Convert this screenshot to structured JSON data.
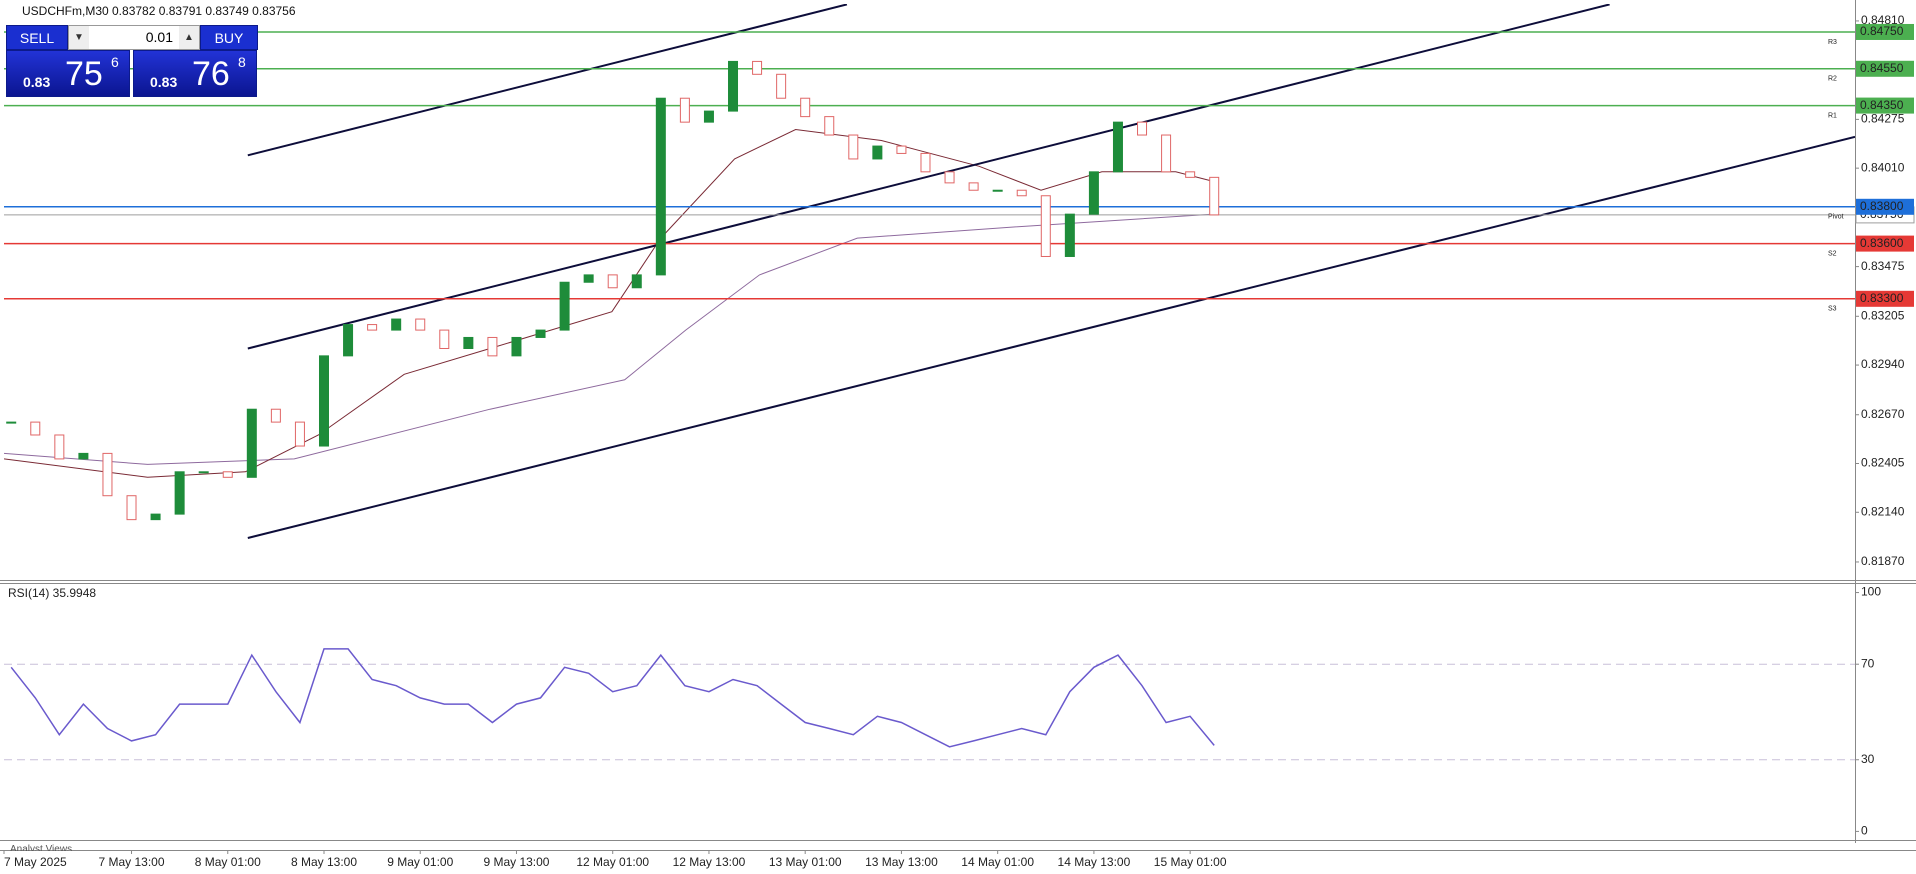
{
  "header": {
    "symbol_info": "USDCHFm,M30  0.83782 0.83791 0.83749 0.83756"
  },
  "trade_panel": {
    "sell": {
      "label": "SELL",
      "price_prefix": "0.83",
      "price_big": "75",
      "price_sup": "6"
    },
    "volume": "0.01",
    "buy": {
      "label": "BUY",
      "price_prefix": "0.83",
      "price_big": "76",
      "price_sup": "8"
    }
  },
  "footer_tab": "Analyst Views",
  "chart_data": [
    {
      "type": "candlestick",
      "up_color": "#1e8c3a",
      "down_color": "#e06666",
      "x": [
        -3,
        0,
        3,
        6,
        9,
        12,
        15,
        18,
        21,
        24,
        27,
        30,
        33,
        36,
        39,
        42,
        45,
        48,
        51,
        54,
        57,
        60,
        63,
        66,
        69,
        72,
        75,
        78,
        81,
        84,
        87,
        90,
        93,
        96,
        99,
        102,
        105,
        108,
        111,
        114,
        117,
        120,
        123,
        126,
        129,
        132,
        135,
        138,
        141,
        144,
        147
      ],
      "values": [
        0.8263,
        0.8256,
        0.8243,
        0.8246,
        0.8223,
        0.821,
        0.8213,
        0.8236,
        0.8236,
        0.8233,
        0.827,
        0.8263,
        0.825,
        0.8299,
        0.8316,
        0.8313,
        0.8319,
        0.8313,
        0.8303,
        0.8309,
        0.8299,
        0.8309,
        0.8313,
        0.8339,
        0.8343,
        0.8336,
        0.8343,
        0.8439,
        0.8426,
        0.8432,
        0.8459,
        0.8452,
        0.8439,
        0.8429,
        0.8419,
        0.8406,
        0.8413,
        0.8409,
        0.8399,
        0.8393,
        0.8389,
        0.8389,
        0.8386,
        0.8353,
        0.8376,
        0.8399,
        0.8426,
        0.8419,
        0.8399,
        0.8396,
        0.83756
      ],
      "xlim": [
        -3.9,
        226.9
      ],
      "ylim": [
        0.81772,
        0.84902
      ],
      "yticks": [
        {
          "value": 0.8481,
          "label": "0.84810"
        },
        {
          "value": 0.84275,
          "label": "0.84275"
        },
        {
          "value": 0.8401,
          "label": "0.84010"
        },
        {
          "value": 0.83475,
          "label": "0.83475"
        },
        {
          "value": 0.83205,
          "label": "0.83205"
        },
        {
          "value": 0.8294,
          "label": "0.82940"
        },
        {
          "value": 0.8267,
          "label": "0.82670"
        },
        {
          "value": 0.82405,
          "label": "0.82405"
        },
        {
          "value": 0.8214,
          "label": "0.82140"
        },
        {
          "value": 0.8187,
          "label": "0.81870"
        }
      ],
      "bid": {
        "value": 0.83756,
        "label": "0.83756",
        "color": "#9e9e9e"
      },
      "levels": [
        {
          "value": 0.8475,
          "label": "0.84750",
          "tag": "R3",
          "color": "#4caf50"
        },
        {
          "value": 0.8455,
          "label": "0.84550",
          "tag": "R2",
          "color": "#4caf50"
        },
        {
          "value": 0.8435,
          "label": "0.84350",
          "tag": "R1",
          "color": "#4caf50"
        },
        {
          "value": 0.838,
          "label": "0.83800",
          "tag": "Pivot",
          "color": "#1e6fd9"
        },
        {
          "value": 0.836,
          "label": "0.83600",
          "tag": "S2",
          "color": "#e53935"
        },
        {
          "value": 0.833,
          "label": "0.83300",
          "tag": "S3",
          "color": "#e53935"
        }
      ],
      "overlays": [
        {
          "color": "#8e6a9e",
          "x": [
            -3.9,
            14,
            32.3,
            56.7,
            73.5,
            81.1,
            90.3,
            102.5,
            122,
            146.7
          ],
          "values": [
            0.8246,
            0.824,
            0.8243,
            0.827,
            0.8286,
            0.8313,
            0.8343,
            0.8363,
            0.8369,
            0.8376
          ]
        },
        {
          "color": "#7a2a35",
          "x": [
            -3.9,
            14,
            26.2,
            35.3,
            46,
            56.7,
            71.9,
            78,
            87.2,
            94.8,
            105.5,
            117.7,
            125.4,
            133,
            142.2,
            146.7
          ],
          "values": [
            0.8243,
            0.8233,
            0.8236,
            0.8256,
            0.8289,
            0.8303,
            0.8323,
            0.8363,
            0.8406,
            0.8422,
            0.8416,
            0.8402,
            0.8389,
            0.8399,
            0.8399,
            0.8394
          ]
        }
      ],
      "trendlines": [
        {
          "color": "#0d0d3a",
          "x": [
            26.5,
            101.2
          ],
          "values": [
            0.8408,
            0.849
          ]
        },
        {
          "color": "#0d0d3a",
          "x": [
            26.5,
            196.3
          ],
          "values": [
            0.8303,
            0.849
          ]
        },
        {
          "color": "#0d0d3a",
          "x": [
            26.5,
            226.9
          ],
          "values": [
            0.82,
            0.8418
          ]
        }
      ]
    },
    {
      "type": "line",
      "title": "RSI(14) 35.9948",
      "color": "#6a5acd",
      "x": [
        -3,
        0,
        3,
        6,
        9,
        12,
        15,
        18,
        21,
        24,
        27,
        30,
        33,
        36,
        39,
        42,
        45,
        48,
        51,
        54,
        57,
        60,
        63,
        66,
        69,
        72,
        75,
        78,
        81,
        84,
        87,
        90,
        93,
        96,
        99,
        102,
        105,
        108,
        111,
        114,
        117,
        120,
        123,
        126,
        129,
        132,
        135,
        138,
        141,
        144,
        147
      ],
      "values": [
        68.7,
        55.9,
        40.5,
        53.3,
        43.1,
        37.9,
        40.5,
        53.3,
        53.3,
        53.3,
        73.8,
        58.5,
        45.6,
        76.4,
        76.4,
        63.6,
        61.0,
        55.9,
        53.3,
        53.3,
        45.6,
        53.3,
        55.9,
        68.7,
        66.2,
        58.5,
        61.0,
        73.8,
        61.0,
        58.5,
        63.6,
        61.0,
        53.3,
        45.6,
        43.1,
        40.5,
        48.2,
        45.6,
        40.5,
        35.4,
        37.9,
        40.5,
        43.1,
        40.5,
        58.5,
        68.7,
        73.8,
        61.0,
        45.6,
        48.2,
        35.9948
      ],
      "xlim": [
        -3.9,
        226.9
      ],
      "ylim": [
        -3.6,
        104
      ],
      "yticks": [
        0,
        30,
        70,
        100
      ],
      "dashed_levels": [
        30,
        70
      ],
      "xticks": [
        {
          "value": -3.9,
          "label": "7 May 2025"
        },
        {
          "value": 12,
          "label": "7 May 13:00"
        },
        {
          "value": 24,
          "label": "8 May 01:00"
        },
        {
          "value": 36,
          "label": "8 May 13:00"
        },
        {
          "value": 48,
          "label": "9 May 01:00"
        },
        {
          "value": 60,
          "label": "9 May 13:00"
        },
        {
          "value": 72,
          "label": "12 May 01:00"
        },
        {
          "value": 84,
          "label": "12 May 13:00"
        },
        {
          "value": 96,
          "label": "13 May 01:00"
        },
        {
          "value": 108,
          "label": "13 May 13:00"
        },
        {
          "value": 120,
          "label": "14 May 01:00"
        },
        {
          "value": 132,
          "label": "14 May 13:00"
        },
        {
          "value": 144,
          "label": "15 May 01:00"
        }
      ]
    }
  ]
}
